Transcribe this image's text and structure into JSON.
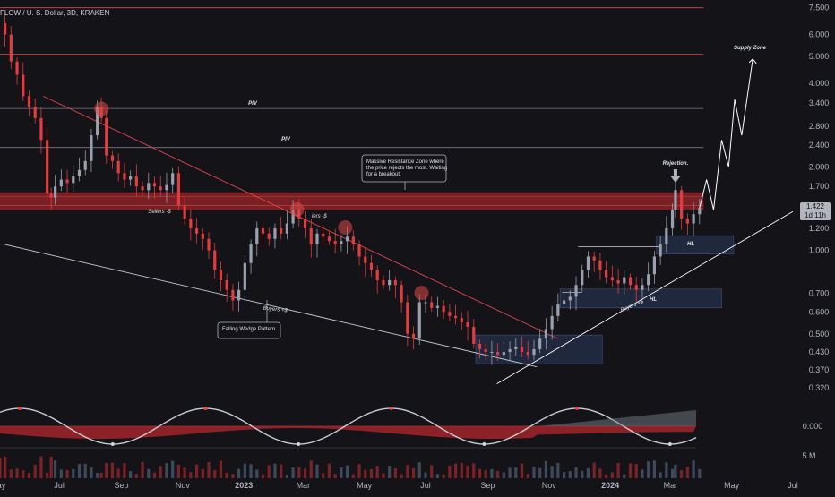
{
  "chart_data": {
    "type": "candlestick",
    "title": "FLOW / U. S. Dollar, 3D, KRAKEN",
    "y_scale": "log",
    "ylim": [
      0.29,
      8.0
    ],
    "y_ticks": [
      7.5,
      6.0,
      5.0,
      4.0,
      3.4,
      2.8,
      2.4,
      2.0,
      1.7,
      1.4,
      1.2,
      1.0,
      0.7,
      0.6,
      0.5,
      0.43,
      0.37,
      0.32
    ],
    "y_tick_labels": [
      "7.500",
      "6.000",
      "5.000",
      "4.000",
      "3.400",
      "2.800",
      "2.400",
      "2.000",
      "1.700",
      "1.400",
      "1.200",
      "1.000",
      "0.700",
      "0.600",
      "0.500",
      "0.430",
      "0.370",
      "0.320"
    ],
    "x_ticks": [
      "May",
      "Jul",
      "Sep",
      "Nov",
      "2023",
      "Mar",
      "May",
      "Jul",
      "Sep",
      "Nov",
      "2024",
      "Mar",
      "May",
      "Jul"
    ],
    "x_tick_bold": [
      "2023",
      "2024"
    ],
    "xlim": [
      "2022-05-03",
      "2024-07-01"
    ],
    "tick_dates": [
      "2022-05-01",
      "2022-07-01",
      "2022-09-01",
      "2022-11-01",
      "2023-01-01",
      "2023-03-01",
      "2023-05-01",
      "2023-07-01",
      "2023-09-01",
      "2023-11-01",
      "2024-01-01",
      "2024-03-01",
      "2024-05-01",
      "2024-07-01"
    ],
    "last_price": "1.422",
    "countdown": "1d 11h",
    "close_series": [
      [
        "2022-05-03",
        6.6
      ],
      [
        "2022-05-08",
        6.0
      ],
      [
        "2022-05-14",
        4.8
      ],
      [
        "2022-05-20",
        4.3
      ],
      [
        "2022-05-26",
        3.6
      ],
      [
        "2022-06-01",
        3.3
      ],
      [
        "2022-06-07",
        3.0
      ],
      [
        "2022-06-13",
        2.5
      ],
      [
        "2022-06-19",
        1.6
      ],
      [
        "2022-06-23",
        1.55
      ],
      [
        "2022-06-27",
        1.7
      ],
      [
        "2022-07-03",
        1.8
      ],
      [
        "2022-07-09",
        1.75
      ],
      [
        "2022-07-15",
        1.85
      ],
      [
        "2022-07-21",
        1.95
      ],
      [
        "2022-07-27",
        2.1
      ],
      [
        "2022-08-02",
        2.6
      ],
      [
        "2022-08-08",
        3.3
      ],
      [
        "2022-08-12",
        3.0
      ],
      [
        "2022-08-17",
        2.2
      ],
      [
        "2022-08-23",
        2.1
      ],
      [
        "2022-08-29",
        1.9
      ],
      [
        "2022-09-04",
        1.8
      ],
      [
        "2022-09-10",
        1.85
      ],
      [
        "2022-09-16",
        1.7
      ],
      [
        "2022-09-22",
        1.65
      ],
      [
        "2022-09-28",
        1.75
      ],
      [
        "2022-10-04",
        1.7
      ],
      [
        "2022-10-10",
        1.65
      ],
      [
        "2022-10-16",
        1.72
      ],
      [
        "2022-10-22",
        1.9
      ],
      [
        "2022-10-28",
        1.45
      ],
      [
        "2022-11-03",
        1.3
      ],
      [
        "2022-11-09",
        1.2
      ],
      [
        "2022-11-15",
        1.15
      ],
      [
        "2022-11-21",
        1.1
      ],
      [
        "2022-11-27",
        1.0
      ],
      [
        "2022-12-03",
        0.85
      ],
      [
        "2022-12-09",
        0.78
      ],
      [
        "2022-12-15",
        0.72
      ],
      [
        "2022-12-21",
        0.66
      ],
      [
        "2022-12-27",
        0.72
      ],
      [
        "2023-01-02",
        0.9
      ],
      [
        "2023-01-08",
        1.05
      ],
      [
        "2023-01-14",
        1.2
      ],
      [
        "2023-01-20",
        1.15
      ],
      [
        "2023-01-26",
        1.1
      ],
      [
        "2023-02-01",
        1.2
      ],
      [
        "2023-02-07",
        1.15
      ],
      [
        "2023-02-13",
        1.25
      ],
      [
        "2023-02-19",
        1.4
      ],
      [
        "2023-02-25",
        1.3
      ],
      [
        "2023-03-03",
        1.2
      ],
      [
        "2023-03-09",
        1.05
      ],
      [
        "2023-03-15",
        1.15
      ],
      [
        "2023-03-21",
        1.12
      ],
      [
        "2023-03-27",
        1.08
      ],
      [
        "2023-04-02",
        1.05
      ],
      [
        "2023-04-08",
        1.08
      ],
      [
        "2023-04-14",
        1.12
      ],
      [
        "2023-04-20",
        1.05
      ],
      [
        "2023-04-26",
        0.95
      ],
      [
        "2023-05-02",
        0.9
      ],
      [
        "2023-05-08",
        0.85
      ],
      [
        "2023-05-14",
        0.78
      ],
      [
        "2023-05-20",
        0.75
      ],
      [
        "2023-05-26",
        0.78
      ],
      [
        "2023-06-01",
        0.75
      ],
      [
        "2023-06-07",
        0.65
      ],
      [
        "2023-06-13",
        0.5
      ],
      [
        "2023-06-19",
        0.48
      ],
      [
        "2023-06-25",
        0.65
      ],
      [
        "2023-07-01",
        0.65
      ],
      [
        "2023-07-07",
        0.62
      ],
      [
        "2023-07-13",
        0.63
      ],
      [
        "2023-07-19",
        0.6
      ],
      [
        "2023-07-25",
        0.58
      ],
      [
        "2023-07-31",
        0.57
      ],
      [
        "2023-08-06",
        0.55
      ],
      [
        "2023-08-12",
        0.53
      ],
      [
        "2023-08-18",
        0.46
      ],
      [
        "2023-08-24",
        0.44
      ],
      [
        "2023-08-30",
        0.43
      ],
      [
        "2023-09-05",
        0.43
      ],
      [
        "2023-09-11",
        0.42
      ],
      [
        "2023-09-17",
        0.43
      ],
      [
        "2023-09-23",
        0.44
      ],
      [
        "2023-09-29",
        0.45
      ],
      [
        "2023-10-05",
        0.43
      ],
      [
        "2023-10-11",
        0.42
      ],
      [
        "2023-10-17",
        0.44
      ],
      [
        "2023-10-23",
        0.48
      ],
      [
        "2023-10-29",
        0.52
      ],
      [
        "2023-11-04",
        0.58
      ],
      [
        "2023-11-10",
        0.64
      ],
      [
        "2023-11-16",
        0.66
      ],
      [
        "2023-11-22",
        0.68
      ],
      [
        "2023-11-28",
        0.75
      ],
      [
        "2023-12-04",
        0.85
      ],
      [
        "2023-12-10",
        0.95
      ],
      [
        "2023-12-16",
        0.92
      ],
      [
        "2023-12-22",
        0.85
      ],
      [
        "2023-12-28",
        0.8
      ],
      [
        "2024-01-03",
        0.78
      ],
      [
        "2024-01-09",
        0.76
      ],
      [
        "2024-01-15",
        0.8
      ],
      [
        "2024-01-21",
        0.75
      ],
      [
        "2024-01-27",
        0.72
      ],
      [
        "2024-02-02",
        0.75
      ],
      [
        "2024-02-08",
        0.82
      ],
      [
        "2024-02-14",
        0.95
      ],
      [
        "2024-02-20",
        1.05
      ],
      [
        "2024-02-26",
        1.2
      ],
      [
        "2024-03-03",
        1.4
      ],
      [
        "2024-03-06",
        1.65
      ],
      [
        "2024-03-12",
        1.3
      ],
      [
        "2024-03-18",
        1.25
      ],
      [
        "2024-03-24",
        1.35
      ],
      [
        "2024-03-30",
        1.422
      ]
    ],
    "projection": [
      [
        "2024-03-30",
        1.422
      ],
      [
        "2024-04-06",
        1.8
      ],
      [
        "2024-04-13",
        1.4
      ],
      [
        "2024-04-21",
        2.5
      ],
      [
        "2024-04-28",
        2.0
      ],
      [
        "2024-05-04",
        3.5
      ],
      [
        "2024-05-11",
        2.6
      ],
      [
        "2024-05-22",
        4.9
      ]
    ],
    "hlines": [
      {
        "value": 7.5,
        "color": "#e0484a"
      },
      {
        "value": 5.1,
        "color": "#e0484a",
        "label": "Supply Zone"
      },
      {
        "value": 3.25,
        "color": "#787b86",
        "label": "PIV"
      },
      {
        "value": 2.35,
        "color": "#787b86",
        "label": "PIV"
      }
    ],
    "resistance_zone": [
      1.4,
      1.62
    ],
    "trendlines": {
      "falling_upper": [
        [
          "2022-06-15",
          3.6
        ],
        [
          "2023-11-10",
          0.48
        ]
      ],
      "falling_lower": [
        [
          "2022-05-08",
          1.05
        ],
        [
          "2023-10-20",
          0.38
        ]
      ],
      "rising_support": [
        [
          "2023-09-10",
          0.33
        ],
        [
          "2024-07-01",
          1.38
        ]
      ],
      "resistance_touch_circles": [
        "2022-08-12",
        "2023-02-23",
        "2023-04-12",
        "2023-06-27"
      ]
    },
    "annotations": {
      "resistance_callout": "Massive Resistance Zone where the price rejects the most. Waiting for a breakout.",
      "wedge_callout": "Falling Wedge Pattern.",
      "rejection": "Rejection.",
      "sellers": "Sellers -$",
      "sellers2": "lers -$",
      "buyers1": "Buyers +$",
      "buyers2": "Buyers +$",
      "hl1": "HL",
      "hl2": "HL"
    },
    "oscillator": {
      "zero_label": "0.000"
    },
    "volume": {
      "label": "5 M"
    }
  }
}
